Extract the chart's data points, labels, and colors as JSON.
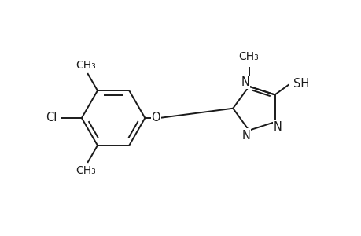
{
  "background_color": "#ffffff",
  "line_color": "#1a1a1a",
  "line_width": 1.4,
  "font_size": 10.5,
  "figsize": [
    4.6,
    3.0
  ],
  "dpi": 100,
  "xlim": [
    0,
    9.2
  ],
  "ylim": [
    0,
    6.0
  ]
}
